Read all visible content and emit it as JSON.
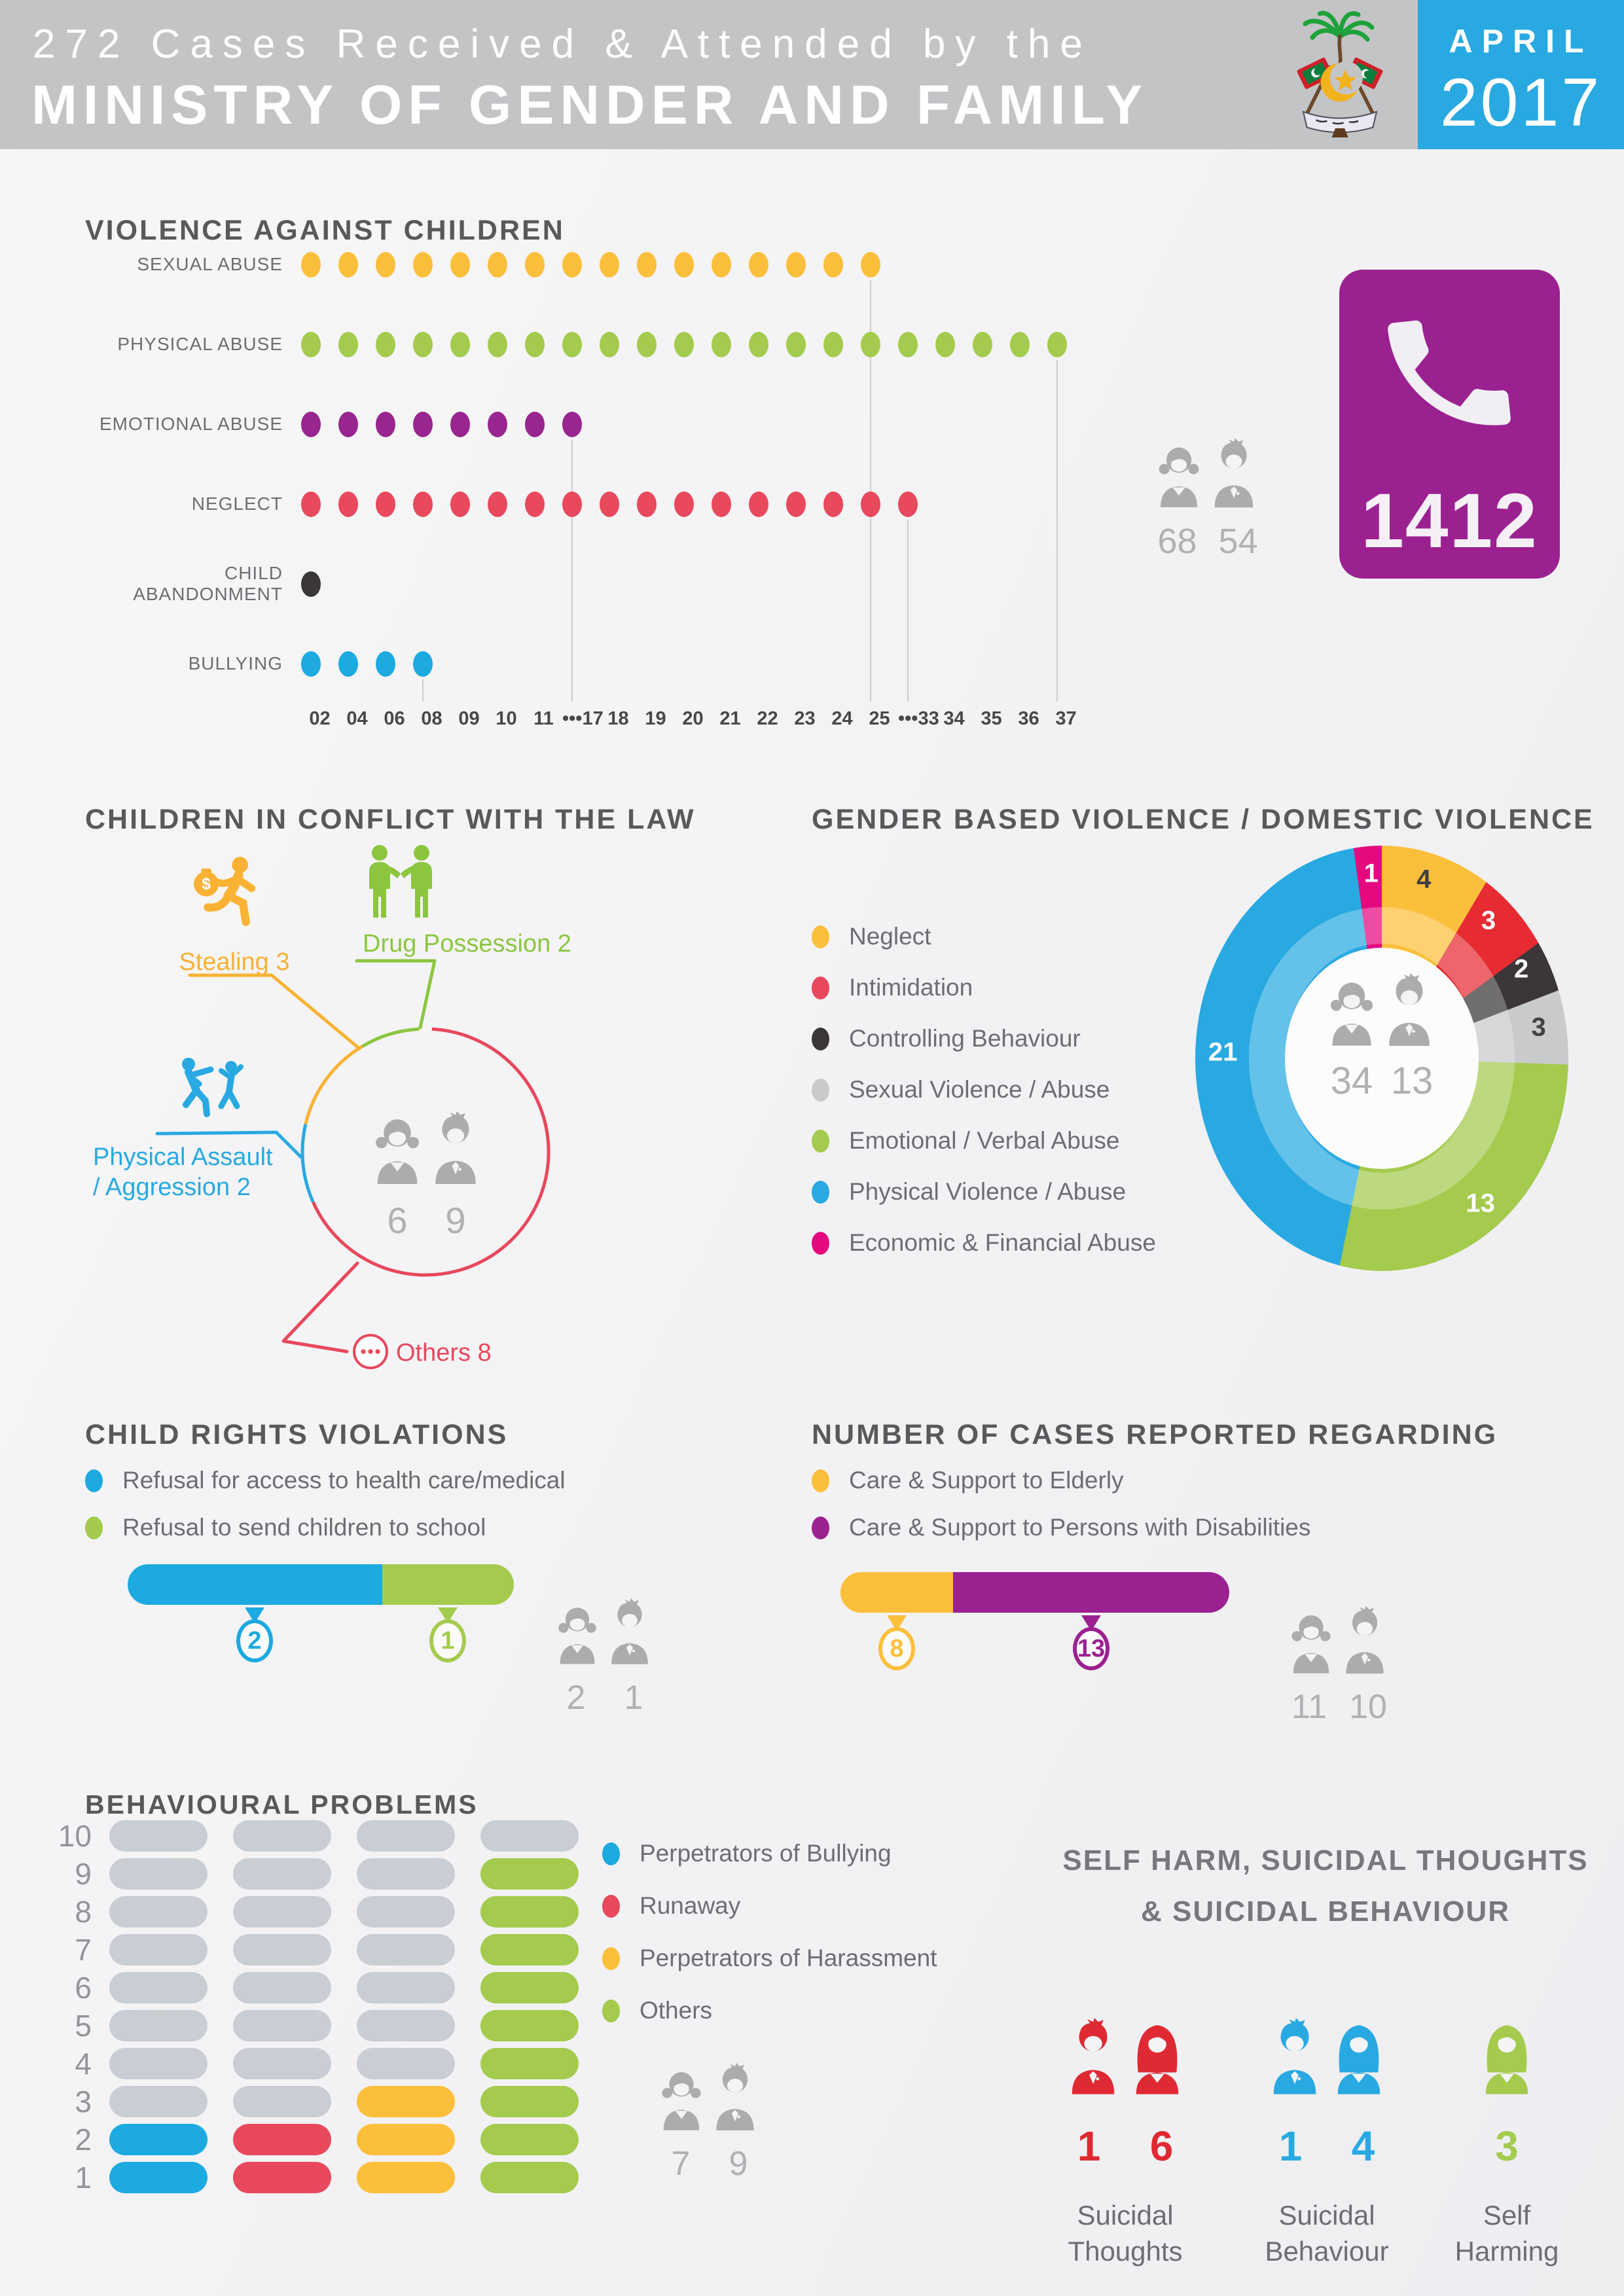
{
  "header": {
    "title_line1": "272 Cases Received & Attended by the",
    "title_line2": "MINISTRY OF GENDER AND FAMILY",
    "month": "APRIL",
    "year": "2017"
  },
  "hotline": {
    "number": "1412",
    "bg": "#9b2191"
  },
  "vac": {
    "title": "VIOLENCE AGAINST CHILDREN",
    "rows": [
      {
        "label": "SEXUAL ABUSE",
        "color": "#fbbf3b",
        "dots": 16,
        "value": 25,
        "drop_slot": 16
      },
      {
        "label": "PHYSICAL ABUSE",
        "color": "#a4cb4e",
        "dots": 21,
        "value": 37,
        "drop_slot": 21
      },
      {
        "label": "EMOTIONAL ABUSE",
        "color": "#99258f",
        "dots": 8,
        "value": 17,
        "drop_slot": 8
      },
      {
        "label": "NEGLECT",
        "color": "#e8495c",
        "dots": 17,
        "value": 33,
        "drop_slot": 17
      },
      {
        "label": "CHILD ABANDONMENT",
        "color": "#3b3637",
        "dots": 1,
        "value": 2,
        "drop_slot": null
      },
      {
        "label": "BULLYING",
        "color": "#1caae0",
        "dots": 4,
        "value": 8,
        "drop_slot": 4
      }
    ],
    "ticks": [
      "02",
      "04",
      "06",
      "08",
      "09",
      "10",
      "11",
      "•••17",
      "18",
      "19",
      "20",
      "21",
      "22",
      "23",
      "24",
      "25",
      "•••33",
      "34",
      "35",
      "36",
      "37"
    ],
    "victims": {
      "girls": "68",
      "boys": "54"
    }
  },
  "conflict": {
    "title": "CHILDREN IN CONFLICT WITH THE LAW",
    "items": [
      {
        "label": "Stealing 3",
        "color": "#f9b233"
      },
      {
        "label": "Drug Possession 2",
        "color": "#8cc63f"
      },
      {
        "label": "Physical Assault / Aggression 2",
        "label_line1": "Physical Assault",
        "label_line2": "/ Aggression 2",
        "color": "#29a9e1"
      },
      {
        "label": "Others 8",
        "color": "#e8485c"
      }
    ],
    "children": {
      "girls": "6",
      "boys": "9"
    }
  },
  "gbv": {
    "title": "GENDER BASED VIOLENCE / DOMESTIC VIOLENCE",
    "segments": [
      {
        "label": "Neglect",
        "color": "#fbbf3b",
        "value": 4,
        "text_color": "#414042"
      },
      {
        "label": "Intimidation",
        "color": "#e62b33",
        "legend_color": "#e8485c",
        "value": 3,
        "text_color": "#ffffff"
      },
      {
        "label": "Controlling Behaviour",
        "color": "#3b3637",
        "value": 2,
        "text_color": "#ffffff"
      },
      {
        "label": "Sexual Violence / Abuse",
        "color": "#c9cacc",
        "value": 3,
        "text_color": "#414042"
      },
      {
        "label": "Emotional / Verbal Abuse",
        "color": "#a4cb4e",
        "value": 13,
        "text_color": "#ffffff"
      },
      {
        "label": "Physical Violence / Abuse",
        "color": "#29a9e1",
        "value": 21,
        "text_color": "#ffffff"
      },
      {
        "label": "Economic & Financial Abuse",
        "color": "#e5097f",
        "value": 1,
        "text_color": "#ffffff"
      }
    ],
    "victims": {
      "female": "34",
      "male": "13"
    }
  },
  "child_rights": {
    "title": "CHILD RIGHTS VIOLATIONS",
    "items": [
      {
        "label": "Refusal for access to health care/medical",
        "color": "#1caae0",
        "value": 2
      },
      {
        "label": "Refusal to send children to school",
        "color": "#a4cb4e",
        "value": 1
      }
    ],
    "children": {
      "girls": "2",
      "boys": "1"
    }
  },
  "cases_reported": {
    "title": "NUMBER OF CASES REPORTED REGARDING",
    "items": [
      {
        "label": "Care & Support to Elderly",
        "color": "#fbbf3b",
        "value": 8
      },
      {
        "label": "Care & Support to Persons with Disabilities",
        "color": "#9b2191",
        "value": 13
      }
    ],
    "persons": {
      "female": "11",
      "male": "10"
    }
  },
  "behavioural": {
    "title": "BEHAVIOURAL PROBLEMS",
    "scale_max": 10,
    "empty_color": "#c9ced5",
    "series": [
      {
        "label": "Perpetrators of Bullying",
        "color": "#1caae0",
        "value": 2
      },
      {
        "label": "Runaway",
        "color": "#e8495c",
        "value": 2
      },
      {
        "label": "Perpetrators of Harassment",
        "color": "#fbbf3b",
        "value": 3
      },
      {
        "label": "Others",
        "color": "#a4cb4e",
        "value": 9
      }
    ],
    "children": {
      "girls": "7",
      "boys": "9"
    }
  },
  "self_harm": {
    "title_line1": "SELF HARM, SUICIDAL THOUGHTS",
    "title_line2": "& SUICIDAL BEHAVIOUR",
    "groups": [
      {
        "label": "Suicidal Thoughts",
        "color": "#df2a33",
        "male": "1",
        "female": "6"
      },
      {
        "label": "Suicidal Behaviour",
        "color": "#29a9e1",
        "male": "1",
        "female": "4"
      },
      {
        "label": "Self Harming",
        "color": "#a4cb4e",
        "male": null,
        "female": "3"
      }
    ]
  },
  "chart_data": [
    {
      "type": "scatter",
      "title": "VIOLENCE AGAINST CHILDREN",
      "categories": [
        "SEXUAL ABUSE",
        "PHYSICAL ABUSE",
        "EMOTIONAL ABUSE",
        "NEGLECT",
        "CHILD ABANDONMENT",
        "BULLYING"
      ],
      "values": [
        25,
        37,
        17,
        33,
        2,
        8
      ],
      "x_ticks": [
        "02",
        "04",
        "06",
        "08",
        "09",
        "10",
        "11",
        "17",
        "18",
        "19",
        "20",
        "21",
        "22",
        "23",
        "24",
        "25",
        "33",
        "34",
        "35",
        "36",
        "37"
      ],
      "victims_by_gender": {
        "girls": 68,
        "boys": 54
      },
      "hotline": "1412"
    },
    {
      "type": "pie",
      "title": "CHILDREN IN CONFLICT WITH THE LAW",
      "categories": [
        "Stealing",
        "Drug Possession",
        "Physical Assault / Aggression",
        "Others"
      ],
      "values": [
        3,
        2,
        2,
        8
      ],
      "children_by_gender": {
        "girls": 6,
        "boys": 9
      }
    },
    {
      "type": "pie",
      "title": "GENDER BASED VIOLENCE / DOMESTIC VIOLENCE",
      "categories": [
        "Neglect",
        "Intimidation",
        "Controlling Behaviour",
        "Sexual Violence / Abuse",
        "Emotional / Verbal Abuse",
        "Physical Violence / Abuse",
        "Economic & Financial Abuse"
      ],
      "values": [
        4,
        3,
        2,
        3,
        13,
        21,
        1
      ],
      "victims_by_gender": {
        "female": 34,
        "male": 13
      }
    },
    {
      "type": "bar",
      "title": "CHILD RIGHTS VIOLATIONS",
      "categories": [
        "Refusal for access to health care/medical",
        "Refusal to send children to school"
      ],
      "values": [
        2,
        1
      ],
      "children_by_gender": {
        "girls": 2,
        "boys": 1
      }
    },
    {
      "type": "bar",
      "title": "NUMBER OF CASES REPORTED REGARDING",
      "categories": [
        "Care & Support to Elderly",
        "Care & Support to Persons with Disabilities"
      ],
      "values": [
        8,
        13
      ],
      "persons_by_gender": {
        "female": 11,
        "male": 10
      }
    },
    {
      "type": "bar",
      "title": "BEHAVIOURAL PROBLEMS",
      "ylim": [
        0,
        10
      ],
      "categories": [
        "Perpetrators of Bullying",
        "Runaway",
        "Perpetrators of Harassment",
        "Others"
      ],
      "values": [
        2,
        2,
        3,
        9
      ],
      "children_by_gender": {
        "girls": 7,
        "boys": 9
      }
    },
    {
      "type": "bar",
      "title": "SELF HARM, SUICIDAL THOUGHTS & SUICIDAL BEHAVIOUR",
      "series": [
        {
          "name": "Suicidal Thoughts",
          "male": 1,
          "female": 6
        },
        {
          "name": "Suicidal Behaviour",
          "male": 1,
          "female": 4
        },
        {
          "name": "Self Harming",
          "male": null,
          "female": 3
        }
      ]
    }
  ]
}
